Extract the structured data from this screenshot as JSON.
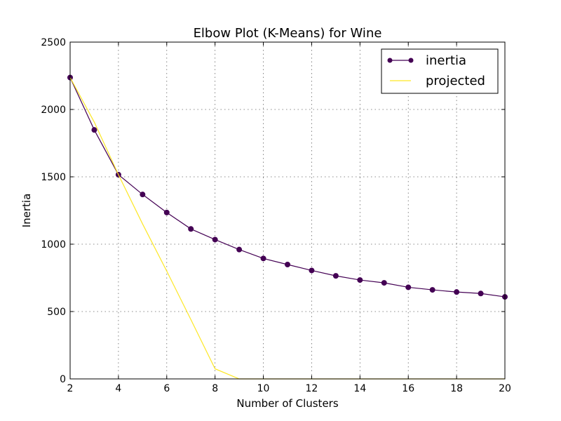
{
  "chart_data": {
    "type": "line",
    "title": "Elbow Plot (K-Means) for Wine",
    "xlabel": "Number of Clusters",
    "ylabel": "Inertia",
    "xlim": [
      2,
      20
    ],
    "ylim": [
      0,
      2500
    ],
    "xticks": [
      2,
      4,
      6,
      8,
      10,
      12,
      14,
      16,
      18,
      20
    ],
    "yticks": [
      0,
      500,
      1000,
      1500,
      2000,
      2500
    ],
    "grid": true,
    "legend_position": "top-right",
    "x": [
      2,
      3,
      4,
      5,
      6,
      7,
      8,
      9,
      10,
      11,
      12,
      13,
      14,
      15,
      16,
      17,
      18,
      19,
      20
    ],
    "series": [
      {
        "name": "inertia",
        "color": "#440154",
        "marker": "circle",
        "values": [
          2237,
          1848,
          1516,
          1369,
          1235,
          1113,
          1034,
          960,
          894,
          849,
          805,
          765,
          734,
          713,
          680,
          661,
          645,
          634,
          609
        ]
      },
      {
        "name": "projected",
        "color": "#fde725",
        "marker": "none",
        "values": [
          2237,
          1906,
          1516,
          1150,
          800,
          440,
          75,
          0,
          0,
          0,
          0,
          0,
          0,
          0,
          0,
          0,
          0,
          0,
          0
        ]
      }
    ]
  }
}
